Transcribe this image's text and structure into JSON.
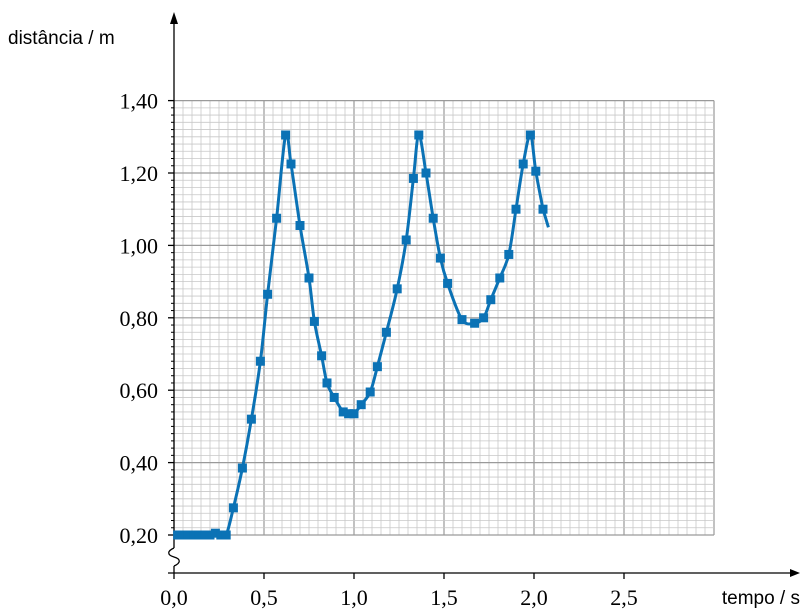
{
  "chart_data": {
    "type": "line",
    "title": "",
    "xlabel": "tempo / s",
    "ylabel": "distância / m",
    "xlim": [
      0,
      3.0
    ],
    "ylim": [
      0.2,
      1.4
    ],
    "y_axis_break": true,
    "grid": true,
    "x_ticks": [
      "0,0",
      "0,5",
      "1,0",
      "1,5",
      "2,0",
      "2,5"
    ],
    "x_tick_values": [
      0,
      0.5,
      1.0,
      1.5,
      2.0,
      2.5
    ],
    "y_ticks": [
      "0,20",
      "0,40",
      "0,60",
      "0,80",
      "1,00",
      "1,20",
      "1,40"
    ],
    "y_tick_values": [
      0.2,
      0.4,
      0.6,
      0.8,
      1.0,
      1.2,
      1.4
    ],
    "series": [
      {
        "color": "#0b72b5",
        "marker": "square",
        "points": [
          [
            0.02,
            0.2
          ],
          [
            0.05,
            0.2
          ],
          [
            0.08,
            0.2
          ],
          [
            0.11,
            0.2
          ],
          [
            0.14,
            0.2
          ],
          [
            0.17,
            0.2
          ],
          [
            0.2,
            0.2
          ],
          [
            0.23,
            0.205
          ],
          [
            0.26,
            0.2
          ],
          [
            0.29,
            0.2
          ],
          [
            0.33,
            0.275
          ],
          [
            0.38,
            0.385
          ],
          [
            0.43,
            0.52
          ],
          [
            0.48,
            0.68
          ],
          [
            0.52,
            0.865
          ],
          [
            0.57,
            1.075
          ],
          [
            0.62,
            1.305
          ],
          [
            0.65,
            1.225
          ],
          [
            0.7,
            1.055
          ],
          [
            0.75,
            0.91
          ],
          [
            0.78,
            0.79
          ],
          [
            0.82,
            0.695
          ],
          [
            0.85,
            0.62
          ],
          [
            0.89,
            0.58
          ],
          [
            0.94,
            0.54
          ],
          [
            0.97,
            0.535
          ],
          [
            1.0,
            0.535
          ],
          [
            1.04,
            0.56
          ],
          [
            1.09,
            0.595
          ],
          [
            1.13,
            0.665
          ],
          [
            1.18,
            0.76
          ],
          [
            1.24,
            0.88
          ],
          [
            1.29,
            1.015
          ],
          [
            1.33,
            1.185
          ],
          [
            1.36,
            1.305
          ],
          [
            1.4,
            1.2
          ],
          [
            1.44,
            1.075
          ],
          [
            1.48,
            0.965
          ],
          [
            1.52,
            0.895
          ],
          [
            1.6,
            0.795
          ],
          [
            1.67,
            0.785
          ],
          [
            1.72,
            0.8
          ],
          [
            1.76,
            0.85
          ],
          [
            1.81,
            0.91
          ],
          [
            1.86,
            0.975
          ],
          [
            1.9,
            1.1
          ],
          [
            1.94,
            1.225
          ],
          [
            1.98,
            1.305
          ],
          [
            2.01,
            1.205
          ],
          [
            2.05,
            1.1
          ]
        ]
      }
    ]
  }
}
